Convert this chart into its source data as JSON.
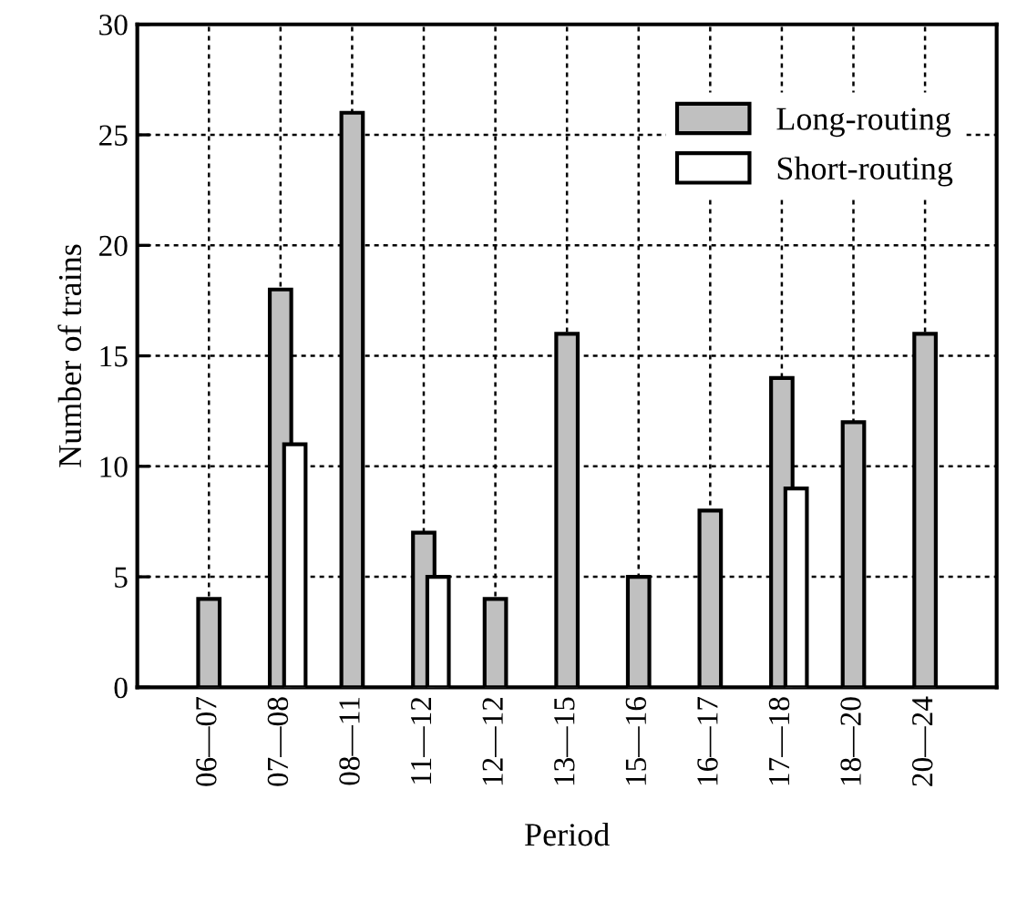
{
  "chart_data": {
    "type": "bar",
    "xlabel": "Period",
    "ylabel": "Number of trains",
    "categories": [
      "06—07",
      "07—08",
      "08—11",
      "11—12",
      "12—12",
      "13—15",
      "15—16",
      "16—17",
      "17—18",
      "18—20",
      "20—24"
    ],
    "series": [
      {
        "name": "Long-routing",
        "color": "#c0c0c0",
        "values": [
          4,
          18,
          26,
          7,
          4,
          16,
          5,
          8,
          14,
          12,
          16
        ]
      },
      {
        "name": "Short-routing",
        "color": "#ffffff",
        "values": [
          null,
          11,
          null,
          5,
          null,
          null,
          null,
          null,
          9,
          null,
          null
        ]
      }
    ],
    "ylim": [
      0,
      30
    ],
    "yticks": [
      0,
      5,
      10,
      15,
      20,
      25,
      30
    ],
    "grid": true,
    "legend": "top right"
  }
}
